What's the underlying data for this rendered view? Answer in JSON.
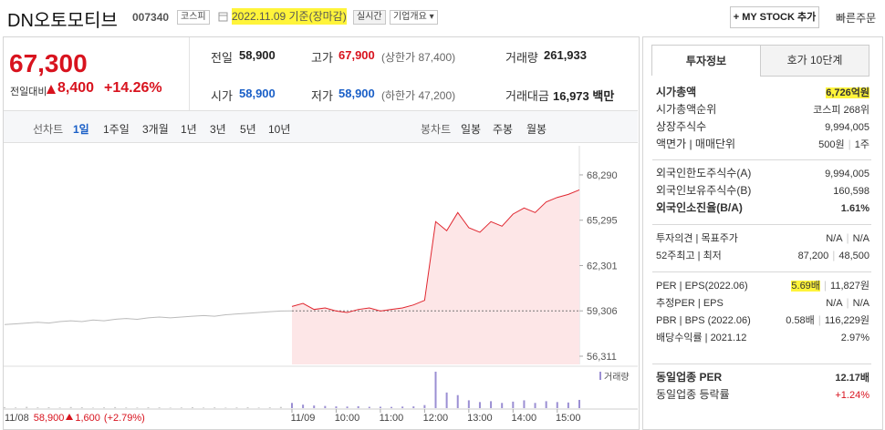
{
  "header": {
    "name": "DN오토모티브",
    "code": "007340",
    "market": "코스피",
    "date": "2022.11.09 기준(장마감)",
    "realtime": "실시간",
    "company": "기업개요",
    "mystock": "+ MY STOCK 추가",
    "quickorder": "빠른주문"
  },
  "price": {
    "current": "67,300",
    "change_label": "전일대비",
    "change": "8,400",
    "rate": "+14.26%"
  },
  "summary": [
    {
      "label": "전일",
      "value": "58,900"
    },
    {
      "label": "고가",
      "value": "67,900",
      "note": "(상한가 87,400)"
    },
    {
      "label": "거래량",
      "value": "261,933"
    },
    {
      "label": "시가",
      "value": "58,900"
    },
    {
      "label": "저가",
      "value": "58,900",
      "note": "(하한가 47,200)"
    },
    {
      "label": "거래대금",
      "value": "16,973 백만"
    }
  ],
  "tabs": {
    "line_label": "선차트",
    "periods": [
      "1일",
      "1주일",
      "3개월",
      "1년",
      "3년",
      "5년",
      "10년"
    ],
    "candle_label": "봉차트",
    "candles": [
      "일봉",
      "주봉",
      "월봉"
    ]
  },
  "chart_data": {
    "type": "line",
    "x": [
      0,
      15,
      30,
      45,
      60,
      75,
      90,
      105,
      120,
      135,
      150,
      165,
      180,
      195,
      210,
      225,
      240,
      255,
      270,
      285,
      300,
      315,
      330,
      345,
      360,
      375,
      390,
      405,
      420,
      435,
      450,
      465,
      480,
      495,
      510,
      525,
      540,
      555,
      570,
      585,
      600,
      615,
      630,
      645,
      660,
      675,
      690,
      705,
      720,
      735,
      750,
      765,
      780
    ],
    "xlim": [
      0,
      780
    ],
    "xticks": [
      {
        "value": 390,
        "label": "11/09"
      },
      {
        "value": 450,
        "label": "10:00"
      },
      {
        "value": 510,
        "label": "11:00"
      },
      {
        "value": 570,
        "label": "12:00"
      },
      {
        "value": 630,
        "label": "13:00"
      },
      {
        "value": 690,
        "label": "14:00"
      },
      {
        "value": 750,
        "label": "15:00"
      }
    ],
    "ylim": [
      55770,
      69310
    ],
    "yticks": [
      {
        "value": 68290,
        "label": "68,290"
      },
      {
        "value": 65295,
        "label": "65,295"
      },
      {
        "value": 62301,
        "label": "62,301"
      },
      {
        "value": 59306,
        "label": "59,306"
      },
      {
        "value": 56311,
        "label": "56,311"
      }
    ],
    "reference": 59306,
    "series": [
      {
        "color": "#bbbbbb",
        "values": [
          58400,
          58450,
          58500,
          58550,
          58500,
          58600,
          58650,
          58600,
          58700,
          58650,
          58750,
          58800,
          58750,
          58850,
          58900,
          58850,
          58900,
          58950,
          59000,
          58950,
          59050,
          59100,
          59150,
          59200,
          59250,
          59300,
          59306,
          null,
          null,
          null,
          null,
          null,
          null,
          null,
          null,
          null,
          null,
          null,
          null,
          null,
          null,
          null,
          null,
          null,
          null,
          null,
          null,
          null,
          null,
          null,
          null,
          null,
          null
        ]
      },
      {
        "color": "#e0262f",
        "area_color": "#fde6e7",
        "values": [
          null,
          null,
          null,
          null,
          null,
          null,
          null,
          null,
          null,
          null,
          null,
          null,
          null,
          null,
          null,
          null,
          null,
          null,
          null,
          null,
          null,
          null,
          null,
          null,
          null,
          null,
          59600,
          59800,
          59400,
          59500,
          59300,
          59200,
          59400,
          59500,
          59300,
          59400,
          59500,
          59700,
          60000,
          65200,
          64600,
          65800,
          64800,
          64500,
          65200,
          64900,
          65700,
          66100,
          65800,
          66500,
          66800,
          67000,
          67300
        ]
      }
    ],
    "volume": {
      "name": "거래량",
      "color": "#9b8fd3",
      "prev_color": "#c8c8c8",
      "values": [
        1200,
        800,
        1500,
        900,
        1100,
        700,
        1300,
        1000,
        600,
        900,
        1200,
        800,
        700,
        1000,
        900,
        600,
        800,
        1100,
        700,
        900,
        600,
        800,
        1000,
        700,
        900,
        1400,
        6000,
        4000,
        3000,
        2500,
        2000,
        1800,
        2200,
        1500,
        1600,
        1400,
        1800,
        2000,
        3500,
        42000,
        18000,
        15000,
        9000,
        7000,
        8000,
        6000,
        7500,
        9000,
        6000,
        8000,
        7000,
        6500,
        9500
      ]
    },
    "info": {
      "date": "11/08",
      "price": "58,900",
      "change": "1,600",
      "rate": "(+2.79%)"
    }
  },
  "invest": {
    "tabs": [
      "투자정보",
      "호가 10단계"
    ],
    "groups": [
      {
        "rows": [
          {
            "label": "시가총액",
            "values": [
              "6,726억원"
            ]
          },
          {
            "label": "시가총액순위",
            "values": [
              "코스피 268위"
            ]
          },
          {
            "label": "상장주식수",
            "values": [
              "9,994,005"
            ]
          },
          {
            "label": "액면가 | 매매단위",
            "values": [
              "500원",
              "1주"
            ]
          }
        ]
      },
      {
        "rows": [
          {
            "label": "외국인한도주식수(A)",
            "values": [
              "9,994,005"
            ]
          },
          {
            "label": "외국인보유주식수(B)",
            "values": [
              "160,598"
            ]
          },
          {
            "label": "외국인소진율(B/A)",
            "values": [
              "1.61%"
            ]
          }
        ]
      },
      {
        "rows": [
          {
            "label": "투자의견 | 목표주가",
            "values": [
              "N/A",
              "N/A"
            ]
          },
          {
            "label": "52주최고 | 최저",
            "values": [
              "87,200",
              "48,500"
            ]
          }
        ]
      },
      {
        "rows": [
          {
            "label": "PER | EPS(2022.06)",
            "values": [
              "5.69배",
              "11,827원"
            ]
          },
          {
            "label": "추정PER | EPS",
            "values": [
              "N/A",
              "N/A"
            ]
          },
          {
            "label": "PBR | BPS (2022.06)",
            "values": [
              "0.58배",
              "116,229원"
            ]
          },
          {
            "label": "배당수익률 | 2021.12",
            "values": [
              "2.97%"
            ]
          }
        ]
      },
      {
        "rows": [
          {
            "label": "동일업종 PER",
            "values": [
              "12.17배"
            ]
          },
          {
            "label": "동일업종 등락률",
            "values": [
              "+1.24%"
            ]
          }
        ]
      }
    ]
  }
}
